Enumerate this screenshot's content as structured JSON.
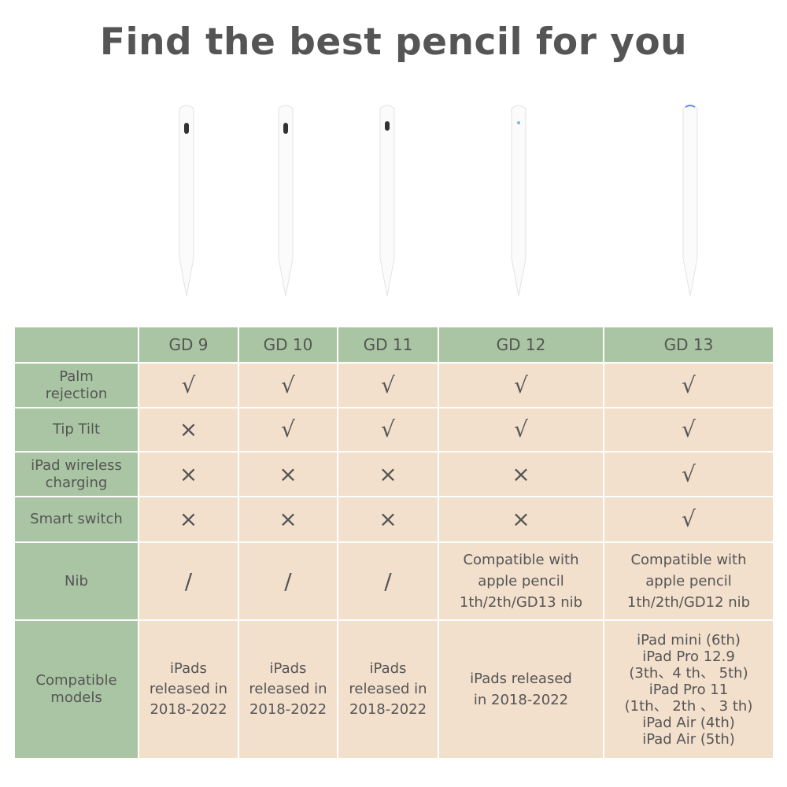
{
  "title": "Find the best pencil for you",
  "colors": {
    "header_green": "#aac5a3",
    "cell_peach": "#f2dfcc",
    "text": "#555555"
  },
  "products": [
    "GD 9",
    "GD 10",
    "GD 11",
    "GD 12",
    "GD 13"
  ],
  "rows": [
    {
      "label": "Palm rejection",
      "values": [
        "√",
        "√",
        "√",
        "√",
        "√"
      ]
    },
    {
      "label": "Tip Tilt",
      "values": [
        "×",
        "√",
        "√",
        "√",
        "√"
      ]
    },
    {
      "label": "iPad  wireless charging",
      "values": [
        "×",
        "×",
        "×",
        "×",
        "√"
      ]
    },
    {
      "label": "Smart switch",
      "values": [
        "×",
        "×",
        "×",
        "×",
        "√"
      ]
    },
    {
      "label": "Nib",
      "values": [
        "/",
        "/",
        "/",
        "Compatible with apple pencil 1th/2th/GD13 nib",
        "Compatible with apple pencil 1th/2th/GD12 nib"
      ]
    },
    {
      "label": "Compatible models",
      "values": [
        "iPads released in 2018-2022",
        "iPads released in 2018-2022",
        "iPads released in 2018-2022",
        "iPads released in 2018-2022",
        "iPad mini (6th)\niPad Pro 12.9\n(3th、4 th、 5th)\niPad Pro 11\n(1th、 2th 、 3 th)\niPad Air (4th)\niPad Air (5th)"
      ]
    }
  ]
}
